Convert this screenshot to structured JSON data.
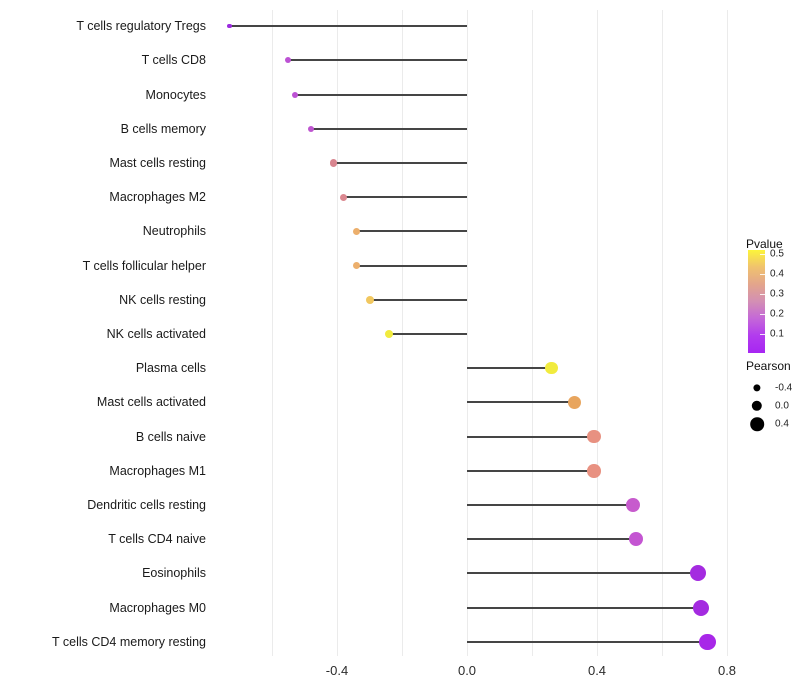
{
  "chart_data": {
    "type": "lollipop",
    "title": "",
    "xlabel": "",
    "ylabel": "",
    "xlim": [
      -0.78,
      1.0
    ],
    "grid": "vertical-minor-only",
    "legend_position": "right",
    "categories": [
      "T cells regulatory  Tregs",
      "T cells CD8",
      "Monocytes",
      "B cells memory",
      "Mast cells resting",
      "Macrophages M2",
      "Neutrophils",
      "T cells follicular helper",
      "NK cells resting",
      "NK cells activated",
      "Plasma cells",
      "Mast cells activated",
      "B cells naive",
      "Macrophages M1",
      "Dendritic cells resting",
      "T cells CD4 naive",
      "Eosinophils",
      "Macrophages M0",
      "T cells CD4 memory resting"
    ],
    "points": [
      {
        "label": "T cells regulatory  Tregs",
        "pearson": -0.73,
        "color": "#9C2BDF"
      },
      {
        "label": "T cells CD8",
        "pearson": -0.55,
        "color": "#BC52D4"
      },
      {
        "label": "Monocytes",
        "pearson": -0.53,
        "color": "#BC52D4"
      },
      {
        "label": "B cells memory",
        "pearson": -0.48,
        "color": "#BE55D0"
      },
      {
        "label": "Mast cells resting",
        "pearson": -0.41,
        "color": "#D8858F"
      },
      {
        "label": "Macrophages M2",
        "pearson": -0.38,
        "color": "#DB8890"
      },
      {
        "label": "Neutrophils",
        "pearson": -0.34,
        "color": "#ECAF6C"
      },
      {
        "label": "T cells follicular helper",
        "pearson": -0.34,
        "color": "#ECAF6C"
      },
      {
        "label": "NK cells resting",
        "pearson": -0.3,
        "color": "#F1C75F"
      },
      {
        "label": "NK cells activated",
        "pearson": -0.24,
        "color": "#F1EB3E"
      },
      {
        "label": "Plasma cells",
        "pearson": 0.26,
        "color": "#F1EB3E"
      },
      {
        "label": "Mast cells activated",
        "pearson": 0.33,
        "color": "#E8A55E"
      },
      {
        "label": "B cells naive",
        "pearson": 0.39,
        "color": "#E89181"
      },
      {
        "label": "Macrophages M1",
        "pearson": 0.39,
        "color": "#E89181"
      },
      {
        "label": "Dendritic cells resting",
        "pearson": 0.51,
        "color": "#C75BCD"
      },
      {
        "label": "T cells CD4 naive",
        "pearson": 0.52,
        "color": "#C455D2"
      },
      {
        "label": "Eosinophils",
        "pearson": 0.71,
        "color": "#A42BE0"
      },
      {
        "label": "Macrophages M0",
        "pearson": 0.72,
        "color": "#A42BE0"
      },
      {
        "label": "T cells CD4 memory resting",
        "pearson": 0.74,
        "color": "#A827E8"
      }
    ],
    "x_axis": {
      "ticks": [
        "-0.4",
        "0.0",
        "0.4",
        "0.8"
      ],
      "tick_values": [
        -0.4,
        0.0,
        0.4,
        0.8
      ],
      "minor_gridline_values": [
        -0.6,
        -0.4,
        -0.2,
        0.0,
        0.2,
        0.4,
        0.6,
        0.8
      ]
    },
    "legend": {
      "pvalue": {
        "title": "Pvalue",
        "ticks": [
          "0.5",
          "0.4",
          "0.3",
          "0.2",
          "0.1"
        ],
        "gradient_top_to_bottom": [
          "#FCF43B",
          "#F0C26E",
          "#E3A58C",
          "#D38FB4",
          "#C467D8",
          "#B23BEE",
          "#A726F2"
        ]
      },
      "pearson": {
        "title": "Pearson",
        "items": [
          {
            "label": "-0.4",
            "value": -0.4
          },
          {
            "label": "0.0",
            "value": 0.0
          },
          {
            "label": "0.4",
            "value": 0.4
          }
        ]
      }
    }
  }
}
